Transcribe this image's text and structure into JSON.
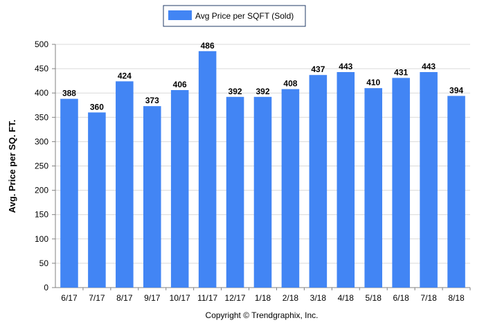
{
  "chart_data": {
    "type": "bar",
    "categories": [
      "6/17",
      "7/17",
      "8/17",
      "9/17",
      "10/17",
      "11/17",
      "12/17",
      "1/18",
      "2/18",
      "3/18",
      "4/18",
      "5/18",
      "6/18",
      "7/18",
      "8/18"
    ],
    "series": [
      {
        "name": "Avg Price per SQFT (Sold)",
        "values": [
          388,
          360,
          424,
          373,
          406,
          486,
          392,
          392,
          408,
          437,
          443,
          410,
          431,
          443,
          394
        ],
        "color": "#4285f4"
      }
    ],
    "xlabel": "",
    "ylabel": "Avg. Price per SQ. FT.",
    "ylim": [
      0,
      500
    ],
    "yticks": [
      0,
      50,
      100,
      150,
      200,
      250,
      300,
      350,
      400,
      450,
      500
    ],
    "grid": true,
    "legend_position": "top-center",
    "data_labels": true
  },
  "footer": {
    "copyright": "Copyright © Trendgraphix, Inc."
  },
  "colors": {
    "bar": "#4285f4",
    "grid": "#d9d9d9",
    "axis": "#808080",
    "legend_border": "#1f3864"
  }
}
